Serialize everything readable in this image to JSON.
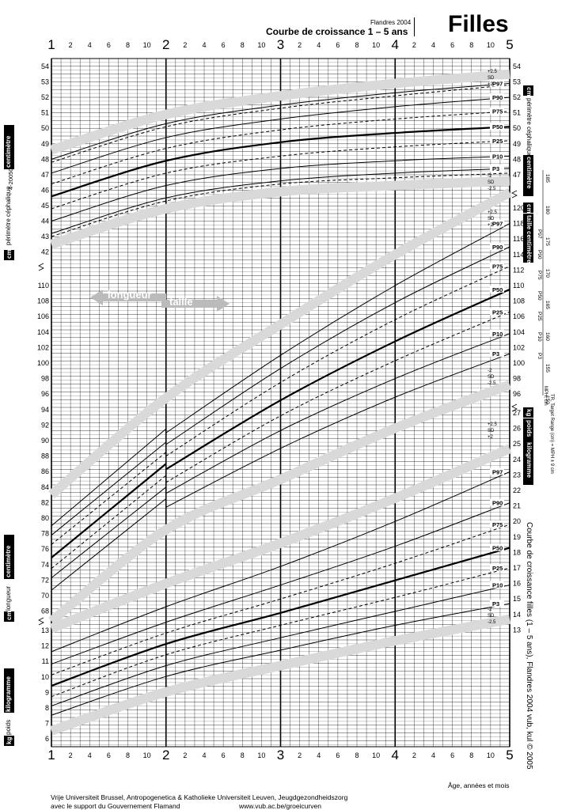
{
  "header": {
    "edition": "Flandres 2004",
    "title": "Courbe de croissance 1 – 5 ans",
    "sex": "Filles",
    "doc_code": "4-2005060 4-FP/1-5/F"
  },
  "side_text": {
    "right_vertical": "Courbe de croissance filles (1 – 5 ans), Flandres 2004    vub, kul © 2005",
    "target_label": "TR, Target Range (cm) = MPH ± 9 cm",
    "mph_label": "MPH, cm"
  },
  "footer": {
    "line1": "Vrije Universiteit Brussel, Antropogenetica & Katholieke Universiteit Leuven, Jeugdgezondheidszorg",
    "line2": "avec le support du Gouvernement Flamand",
    "url": "www.vub.ac.be/groeicurven",
    "age_label": "Âge, années et mois"
  },
  "labels": {
    "head_left_unit": "cm",
    "head_left_label": "périmètre céphalique",
    "head_left_sub": "centimètre",
    "head_right_unit": "cm",
    "head_right_label": "périmètre céphalique",
    "head_right_sub": "centimètre",
    "height_right_unit": "cm",
    "height_right_label": "taille",
    "height_right_sub": "centimètre",
    "length_left_unit": "cm",
    "length_left_label": "longueur",
    "length_left_sub": "centimètre",
    "weight_left_unit": "kg",
    "weight_left_label": "poids",
    "weight_left_sub": "kilogramme",
    "weight_right_unit": "kg",
    "weight_right_label": "poids",
    "weight_right_sub": "kilogramme",
    "arrow_length": "longueur",
    "arrow_height": "taille"
  },
  "chart_data": {
    "type": "line",
    "x_axis": {
      "label": "Âge, années et mois",
      "range_years": [
        1,
        5
      ],
      "year_ticks": [
        "1",
        "2",
        "3",
        "4",
        "5"
      ],
      "month_ticks": [
        "2",
        "4",
        "6",
        "8",
        "10"
      ]
    },
    "head_circumference": {
      "unit": "cm",
      "axis_ticks": [
        42,
        43,
        44,
        45,
        46,
        47,
        48,
        49,
        50,
        51,
        52,
        53,
        54
      ],
      "right_axis_ticks": [
        47,
        48,
        49,
        50,
        51,
        52,
        53,
        54
      ],
      "series": [
        {
          "name": "+2.5 SD",
          "style": "band",
          "x": [
            1,
            2,
            3,
            4,
            5
          ],
          "y": [
            48.6,
            50.9,
            52.1,
            52.9,
            53.5
          ]
        },
        {
          "name": "P97",
          "style": "solid",
          "x": [
            1,
            2,
            3,
            4,
            5
          ],
          "y": [
            48.0,
            50.3,
            51.5,
            52.3,
            52.9
          ]
        },
        {
          "name": "+2 SD",
          "style": "dashed",
          "x": [
            1,
            2,
            3,
            4,
            5
          ],
          "y": [
            47.8,
            50.1,
            51.3,
            52.1,
            52.8
          ]
        },
        {
          "name": "P90",
          "style": "solid",
          "x": [
            1,
            2,
            3,
            4,
            5
          ],
          "y": [
            47.1,
            49.4,
            50.6,
            51.4,
            52.0
          ]
        },
        {
          "name": "P75",
          "style": "dashed",
          "x": [
            1,
            2,
            3,
            4,
            5
          ],
          "y": [
            46.4,
            48.7,
            49.9,
            50.6,
            51.1
          ]
        },
        {
          "name": "P50",
          "style": "bold",
          "x": [
            1,
            2,
            3,
            4,
            5
          ],
          "y": [
            45.6,
            47.9,
            49.1,
            49.7,
            50.1
          ]
        },
        {
          "name": "P25",
          "style": "dashed",
          "x": [
            1,
            2,
            3,
            4,
            5
          ],
          "y": [
            44.8,
            47.1,
            48.2,
            48.8,
            49.2
          ]
        },
        {
          "name": "P10",
          "style": "solid",
          "x": [
            1,
            2,
            3,
            4,
            5
          ],
          "y": [
            44.0,
            46.3,
            47.4,
            47.9,
            48.2
          ]
        },
        {
          "name": "P3",
          "style": "solid",
          "x": [
            1,
            2,
            3,
            4,
            5
          ],
          "y": [
            43.2,
            45.5,
            46.6,
            47.1,
            47.4
          ]
        },
        {
          "name": "-2 SD",
          "style": "dashed",
          "x": [
            1,
            2,
            3,
            4,
            5
          ],
          "y": [
            43.0,
            45.3,
            46.4,
            46.8,
            47.1
          ]
        },
        {
          "name": "-2.5 SD",
          "style": "band",
          "x": [
            1,
            2,
            3,
            4,
            5
          ],
          "y": [
            42.5,
            44.8,
            45.9,
            46.3,
            46.6
          ]
        }
      ],
      "labels_right": [
        "+2.5",
        "SD",
        "+2",
        "P97",
        "P90",
        "P75",
        "P50",
        "P25",
        "P10",
        "P3",
        "-2",
        "SD",
        "-2.5"
      ]
    },
    "length_height": {
      "unit": "cm",
      "axis_ticks": [
        68,
        70,
        72,
        74,
        76,
        78,
        80,
        82,
        84,
        86,
        88,
        90,
        92,
        94,
        96,
        98,
        100,
        102,
        104,
        106,
        108,
        110
      ],
      "right_axis_ticks": [
        96,
        98,
        100,
        102,
        104,
        106,
        108,
        110,
        112,
        114,
        116,
        118,
        120
      ],
      "length_series": [
        {
          "name": "P97",
          "style": "solid",
          "x": [
            1,
            2
          ],
          "y": [
            79.0,
            91.5
          ]
        },
        {
          "name": "P90",
          "style": "solid",
          "x": [
            1,
            2
          ],
          "y": [
            77.8,
            89.8
          ]
        },
        {
          "name": "P75",
          "style": "dashed",
          "x": [
            1,
            2
          ],
          "y": [
            76.6,
            88.5
          ]
        },
        {
          "name": "P50",
          "style": "bold",
          "x": [
            1,
            2
          ],
          "y": [
            74.9,
            87.0
          ]
        },
        {
          "name": "P25",
          "style": "dashed",
          "x": [
            1,
            2
          ],
          "y": [
            73.5,
            85.5
          ]
        },
        {
          "name": "P10",
          "style": "solid",
          "x": [
            1,
            2
          ],
          "y": [
            72.3,
            84.0
          ]
        },
        {
          "name": "P3",
          "style": "solid",
          "x": [
            1,
            2
          ],
          "y": [
            70.7,
            82.5
          ]
        }
      ],
      "height_series": [
        {
          "name": "P97",
          "style": "solid",
          "x": [
            2,
            3,
            4,
            5
          ],
          "y": [
            91.0,
            101.0,
            110.0,
            118.0
          ]
        },
        {
          "name": "P90",
          "style": "solid",
          "x": [
            2,
            3,
            4,
            5
          ],
          "y": [
            89.5,
            99.3,
            107.8,
            115.0
          ]
        },
        {
          "name": "P75",
          "style": "dashed",
          "x": [
            2,
            3,
            4,
            5
          ],
          "y": [
            88.0,
            97.5,
            105.6,
            112.5
          ]
        },
        {
          "name": "P50",
          "style": "bold",
          "x": [
            2,
            3,
            4,
            5
          ],
          "y": [
            86.3,
            95.2,
            102.8,
            109.5
          ]
        },
        {
          "name": "P25",
          "style": "dashed",
          "x": [
            2,
            3,
            4,
            5
          ],
          "y": [
            84.6,
            93.2,
            100.3,
            106.6
          ]
        },
        {
          "name": "P10",
          "style": "solid",
          "x": [
            2,
            3,
            4,
            5
          ],
          "y": [
            83.2,
            91.3,
            98.0,
            103.8
          ]
        },
        {
          "name": "P3",
          "style": "solid",
          "x": [
            2,
            3,
            4,
            5
          ],
          "y": [
            81.4,
            89.0,
            95.6,
            101.2
          ]
        }
      ],
      "labels_right": [
        "+2.5",
        "SD",
        "+2",
        "P97",
        "P90",
        "P75",
        "P50",
        "P25",
        "P10",
        "P3",
        "-2",
        "SD",
        "-2.5"
      ]
    },
    "weight": {
      "unit": "kg",
      "axis_ticks": [
        6,
        7,
        8,
        9,
        10,
        11,
        12,
        13
      ],
      "right_axis_ticks": [
        13,
        14,
        15,
        16,
        17,
        18,
        19,
        20,
        21,
        22,
        23,
        24,
        25,
        26,
        27
      ],
      "series": [
        {
          "name": "P97",
          "style": "solid",
          "x": [
            1,
            2,
            3,
            4,
            5
          ],
          "y": [
            11.6,
            14.5,
            17.1,
            20.0,
            23.2
          ]
        },
        {
          "name": "P90",
          "style": "solid",
          "x": [
            1,
            2,
            3,
            4,
            5
          ],
          "y": [
            10.8,
            13.5,
            15.9,
            18.4,
            21.2
          ]
        },
        {
          "name": "P75",
          "style": "dashed",
          "x": [
            1,
            2,
            3,
            4,
            5
          ],
          "y": [
            10.1,
            12.8,
            15.0,
            17.3,
            19.8
          ]
        },
        {
          "name": "P50",
          "style": "bold",
          "x": [
            1,
            2,
            3,
            4,
            5
          ],
          "y": [
            9.4,
            12.1,
            14.1,
            16.2,
            18.3
          ]
        },
        {
          "name": "P25",
          "style": "dashed",
          "x": [
            1,
            2,
            3,
            4,
            5
          ],
          "y": [
            8.7,
            11.4,
            13.3,
            15.1,
            17.0
          ]
        },
        {
          "name": "P10",
          "style": "solid",
          "x": [
            1,
            2,
            3,
            4,
            5
          ],
          "y": [
            8.1,
            10.7,
            12.5,
            14.2,
            15.9
          ]
        },
        {
          "name": "P3",
          "style": "solid",
          "x": [
            1,
            2,
            3,
            4,
            5
          ],
          "y": [
            7.5,
            10.0,
            11.7,
            13.3,
            14.7
          ]
        }
      ],
      "labels_right": [
        "+2.5",
        "SD",
        "+2",
        "P97",
        "P90",
        "P75",
        "P50",
        "P25",
        "P10",
        "P3",
        "-2",
        "SD",
        "-2.5"
      ]
    },
    "target_height_scale": {
      "unit": "cm",
      "ticks": [
        "185",
        "180",
        "175",
        "170",
        "165",
        "160",
        "155",
        "150"
      ],
      "percentile_labels": [
        "P97",
        "P90",
        "P75",
        "P50",
        "P25",
        "P10",
        "P3"
      ]
    },
    "grid": true
  }
}
